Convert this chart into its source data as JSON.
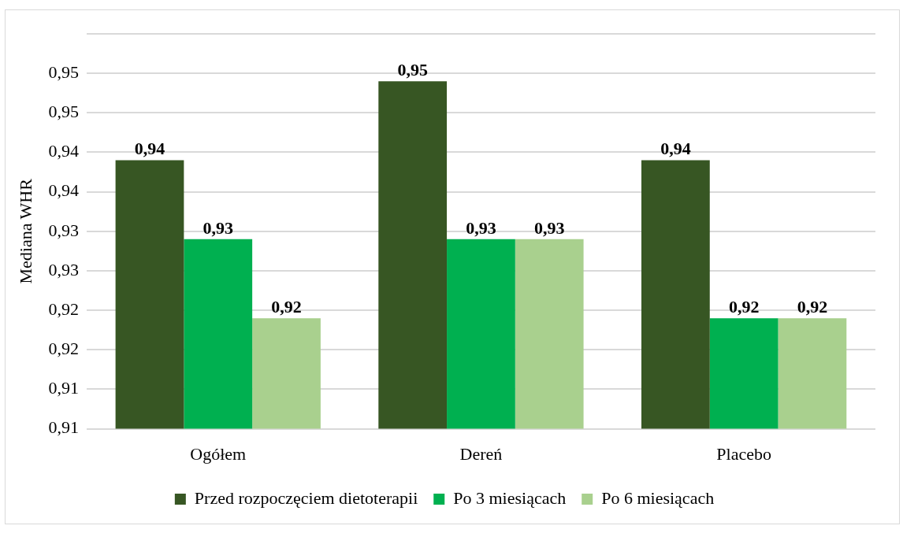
{
  "chart_data": {
    "type": "bar",
    "ylabel": "Mediana WHR",
    "categories": [
      "Ogółem",
      "Dereń",
      "Placebo"
    ],
    "series": [
      {
        "name": "Przed rozpoczęciem dietoterapii",
        "color": "#375623",
        "values": [
          0.944,
          0.954,
          0.944
        ],
        "value_labels": [
          "0,94",
          "0,95",
          "0,94"
        ]
      },
      {
        "name": "Po 3 miesiącach",
        "color": "#00b050",
        "values": [
          0.934,
          0.934,
          0.924
        ],
        "value_labels": [
          "0,93",
          "0,93",
          "0,92"
        ]
      },
      {
        "name": "Po 6 miesiącach",
        "color": "#a9d08e",
        "values": [
          0.924,
          0.934,
          0.924
        ],
        "value_labels": [
          "0,92",
          "0,93",
          "0,92"
        ]
      }
    ],
    "ylim": [
      0.91,
      0.96
    ],
    "yticks": [
      {
        "value": 0.91,
        "label": "0,91"
      },
      {
        "value": 0.915,
        "label": "0,91"
      },
      {
        "value": 0.92,
        "label": "0,92"
      },
      {
        "value": 0.925,
        "label": "0,92"
      },
      {
        "value": 0.93,
        "label": "0,93"
      },
      {
        "value": 0.935,
        "label": "0,93"
      },
      {
        "value": 0.94,
        "label": "0,94"
      },
      {
        "value": 0.945,
        "label": "0,94"
      },
      {
        "value": 0.95,
        "label": "0,95"
      },
      {
        "value": 0.955,
        "label": "0,95"
      },
      {
        "value": 0.96,
        "label": null
      }
    ],
    "grid": "y",
    "legend": "bottom"
  }
}
